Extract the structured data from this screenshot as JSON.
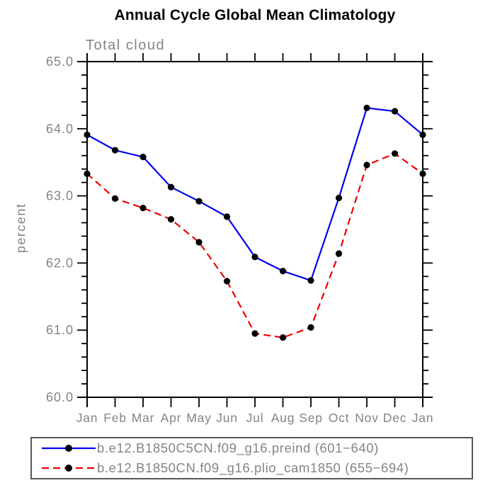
{
  "header": {
    "title": "Annual Cycle Global Mean Climatology",
    "subtitle": "Total cloud"
  },
  "colors": {
    "axis": "#000000",
    "muted_text": "#848484",
    "series_1": "#0000ee",
    "series_2": "#ee0000",
    "marker": "#000000",
    "legend_border": "#555555"
  },
  "chart_data": {
    "type": "line",
    "title": "Annual Cycle Global Mean Climatology",
    "subtitle": "Total cloud",
    "xlabel": "",
    "ylabel": "percent",
    "categories": [
      "Jan",
      "Feb",
      "Mar",
      "Apr",
      "May",
      "Jun",
      "Jul",
      "Aug",
      "Sep",
      "Oct",
      "Nov",
      "Dec",
      "Jan"
    ],
    "series": [
      {
        "name": "b.e12.B1850C5CN.f09_g16.preind (601−640)",
        "color": "#0000ee",
        "line_style": "solid",
        "marker": "filled-circle",
        "marker_color": "#000000",
        "values": [
          63.91,
          63.68,
          63.58,
          63.13,
          62.92,
          62.69,
          62.09,
          61.88,
          61.74,
          62.97,
          64.31,
          64.26,
          63.91
        ]
      },
      {
        "name": "b.e12.B1850CN.f09_g16.plio_cam1850 (655−694)",
        "color": "#ee0000",
        "line_style": "dashed",
        "marker": "filled-circle",
        "marker_color": "#000000",
        "values": [
          63.33,
          62.96,
          62.82,
          62.65,
          62.31,
          61.73,
          60.95,
          60.89,
          61.04,
          62.14,
          63.46,
          63.63,
          63.33
        ]
      }
    ],
    "ylim": [
      60.0,
      65.0
    ],
    "yticks": {
      "major_values": [
        60.0,
        61.0,
        62.0,
        63.0,
        64.0,
        65.0
      ],
      "major_labels": [
        "60.0",
        "61.0",
        "62.0",
        "63.0",
        "64.0",
        "65.0"
      ],
      "minor_step": 0.2
    },
    "grid": false,
    "legend_position": "bottom",
    "tick_direction": "out"
  }
}
